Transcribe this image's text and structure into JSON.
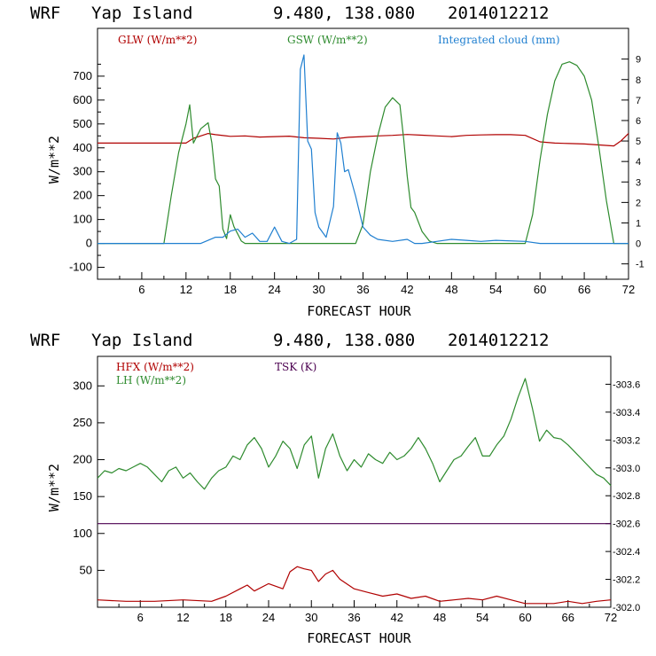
{
  "charts": [
    {
      "title": {
        "model": "WRF",
        "location": "Yap Island",
        "coords": "9.480, 138.080",
        "run": "2014012212"
      },
      "xlabel": "FORECAST HOUR",
      "ylabel": "W/m**2",
      "x_ticks": [
        "6",
        "12",
        "18",
        "24",
        "30",
        "36",
        "42",
        "48",
        "54",
        "60",
        "66",
        "72"
      ],
      "y_ticks": [
        "-100",
        "0",
        "100",
        "200",
        "300",
        "400",
        "500",
        "600",
        "700"
      ],
      "y2_ticks": [
        "-1",
        "0",
        "1",
        "2",
        "3",
        "4",
        "5",
        "6",
        "7",
        "8",
        "9"
      ],
      "legend": [
        {
          "label": "GLW (W/m**2)",
          "color": "#b00000"
        },
        {
          "label": "GSW (W/m**2)",
          "color": "#2e8b2e"
        },
        {
          "label": "Integrated cloud (mm)",
          "color": "#1f7fd0"
        }
      ]
    },
    {
      "title": {
        "model": "WRF",
        "location": "Yap Island",
        "coords": "9.480, 138.080",
        "run": "2014012212"
      },
      "xlabel": "FORECAST HOUR",
      "ylabel": "W/m**2",
      "x_ticks": [
        "6",
        "12",
        "18",
        "24",
        "30",
        "36",
        "42",
        "48",
        "54",
        "60",
        "66",
        "72"
      ],
      "y_ticks_upper": [
        "150",
        "200",
        "250",
        "300"
      ],
      "y_ticks_lower": [
        "50",
        "100"
      ],
      "y2_ticks": [
        "302.0",
        "302.2",
        "302.4",
        "302.6",
        "302.8",
        "303.0",
        "303.2",
        "303.4",
        "303.6"
      ],
      "legend": [
        {
          "label": "HFX (W/m**2)",
          "color": "#b00000"
        },
        {
          "label": "LH  (W/m**2)",
          "color": "#2e8b2e"
        },
        {
          "label": "TSK (K)",
          "color": "#4b0050"
        }
      ]
    }
  ],
  "chart_data": [
    {
      "type": "line",
      "title": "WRF Yap Island 9.480, 138.080 2014012212",
      "xlabel": "FORECAST HOUR",
      "ylabel": "W/m**2",
      "xlim": [
        0,
        72
      ],
      "ylim": [
        -150,
        900
      ],
      "y2lim": [
        -1.75,
        10.5
      ],
      "series": [
        {
          "name": "GLW (W/m**2)",
          "color": "#b00000",
          "axis": "left",
          "x": [
            0,
            6,
            12,
            13,
            14,
            15,
            16,
            18,
            20,
            22,
            24,
            26,
            28,
            30,
            32,
            34,
            36,
            38,
            40,
            42,
            44,
            46,
            48,
            50,
            52,
            54,
            56,
            58,
            60,
            62,
            64,
            66,
            68,
            70,
            71,
            72
          ],
          "y": [
            420,
            420,
            420,
            440,
            450,
            460,
            455,
            448,
            450,
            445,
            447,
            449,
            442,
            440,
            437,
            444,
            447,
            450,
            452,
            456,
            453,
            450,
            447,
            452,
            454,
            455,
            455,
            452,
            425,
            420,
            418,
            416,
            412,
            408,
            430,
            460
          ]
        },
        {
          "name": "GSW (W/m**2)",
          "color": "#2e8b2e",
          "axis": "left",
          "x": [
            0,
            9,
            10,
            11,
            12,
            12.5,
            13,
            14,
            15,
            15.5,
            16,
            16.5,
            17,
            17.5,
            18,
            18.5,
            19,
            19.5,
            20,
            21,
            22,
            24,
            30,
            32,
            33,
            34,
            35,
            36,
            37,
            38,
            39,
            40,
            41,
            41.5,
            42,
            42.5,
            43,
            44,
            45,
            46,
            48,
            50,
            52,
            54,
            56,
            58,
            59,
            60,
            61,
            62,
            63,
            64,
            65,
            66,
            67,
            68,
            69,
            70,
            72
          ],
          "y": [
            0,
            0,
            200,
            380,
            500,
            580,
            420,
            480,
            505,
            420,
            270,
            240,
            60,
            20,
            120,
            70,
            40,
            10,
            0,
            0,
            0,
            0,
            0,
            0,
            0,
            0,
            0,
            80,
            300,
            450,
            570,
            610,
            580,
            440,
            280,
            150,
            130,
            50,
            10,
            0,
            0,
            0,
            0,
            0,
            0,
            0,
            120,
            350,
            540,
            680,
            750,
            760,
            745,
            700,
            600,
            400,
            180,
            0,
            0
          ]
        },
        {
          "name": "Integrated cloud (mm)",
          "color": "#1f7fd0",
          "axis": "right",
          "x": [
            0,
            14,
            16,
            17,
            18,
            19,
            20,
            21,
            22,
            23,
            24,
            25,
            26,
            27,
            27.5,
            28,
            28.5,
            29,
            29.5,
            30,
            31,
            32,
            32.5,
            33,
            33.5,
            34,
            35,
            36,
            37,
            38,
            40,
            42,
            43,
            44,
            46,
            48,
            50,
            52,
            54,
            58,
            60,
            62,
            72
          ],
          "y": [
            0,
            0,
            0.3,
            0.3,
            0.6,
            0.7,
            0.3,
            0.5,
            0.1,
            0.1,
            0.8,
            0.1,
            0,
            0.2,
            8.5,
            9.2,
            5,
            4.6,
            1.5,
            0.8,
            0.3,
            1.8,
            5.4,
            4.9,
            3.5,
            3.6,
            2.3,
            0.8,
            0.4,
            0.2,
            0.1,
            0.2,
            0,
            0,
            0.1,
            0.2,
            0.15,
            0.1,
            0.15,
            0.1,
            0,
            0,
            0
          ]
        }
      ]
    },
    {
      "type": "line",
      "title": "WRF Yap Island 9.480, 138.080 2014012212",
      "xlabel": "FORECAST HOUR",
      "ylabel": "W/m**2",
      "xlim": [
        0,
        72
      ],
      "ylim": [
        0,
        340
      ],
      "y2lim": [
        302.0,
        303.8
      ],
      "series": [
        {
          "name": "LH  (W/m**2)",
          "color": "#2e8b2e",
          "axis": "left",
          "x": [
            0,
            1,
            2,
            3,
            4,
            5,
            6,
            7,
            8,
            9,
            10,
            11,
            12,
            13,
            14,
            15,
            16,
            17,
            18,
            19,
            20,
            21,
            22,
            23,
            24,
            25,
            26,
            27,
            28,
            29,
            30,
            31,
            32,
            33,
            34,
            35,
            36,
            37,
            38,
            39,
            40,
            41,
            42,
            43,
            44,
            45,
            46,
            47,
            48,
            49,
            50,
            51,
            52,
            53,
            54,
            55,
            56,
            57,
            58,
            59,
            60,
            61,
            62,
            63,
            64,
            65,
            66,
            67,
            68,
            69,
            70,
            71,
            72
          ],
          "y": [
            175,
            185,
            182,
            188,
            185,
            190,
            195,
            190,
            180,
            170,
            185,
            190,
            175,
            182,
            170,
            160,
            175,
            185,
            190,
            205,
            200,
            220,
            230,
            215,
            190,
            205,
            225,
            215,
            188,
            220,
            232,
            175,
            215,
            235,
            205,
            185,
            200,
            190,
            208,
            200,
            195,
            210,
            200,
            205,
            215,
            230,
            215,
            195,
            170,
            185,
            200,
            205,
            218,
            230,
            205,
            205,
            220,
            232,
            255,
            285,
            310,
            270,
            225,
            240,
            230,
            228,
            220,
            210,
            200,
            190,
            180,
            175,
            165
          ]
        },
        {
          "name": "HFX (W/m**2)",
          "color": "#b00000",
          "axis": "left",
          "x": [
            0,
            4,
            8,
            12,
            16,
            18,
            20,
            21,
            22,
            24,
            26,
            27,
            28,
            29,
            30,
            31,
            32,
            33,
            34,
            36,
            38,
            40,
            42,
            44,
            46,
            48,
            50,
            52,
            54,
            56,
            58,
            60,
            62,
            64,
            66,
            68,
            70,
            72
          ],
          "y": [
            10,
            8,
            8,
            10,
            8,
            15,
            25,
            30,
            22,
            32,
            25,
            48,
            55,
            52,
            50,
            35,
            45,
            50,
            38,
            25,
            20,
            15,
            18,
            12,
            15,
            8,
            10,
            12,
            10,
            15,
            10,
            5,
            5,
            5,
            8,
            5,
            8,
            10
          ]
        },
        {
          "name": "TSK (K)",
          "color": "#4b0050",
          "axis": "right",
          "x": [
            0,
            72
          ],
          "y": [
            302.6,
            302.6
          ]
        }
      ]
    }
  ]
}
